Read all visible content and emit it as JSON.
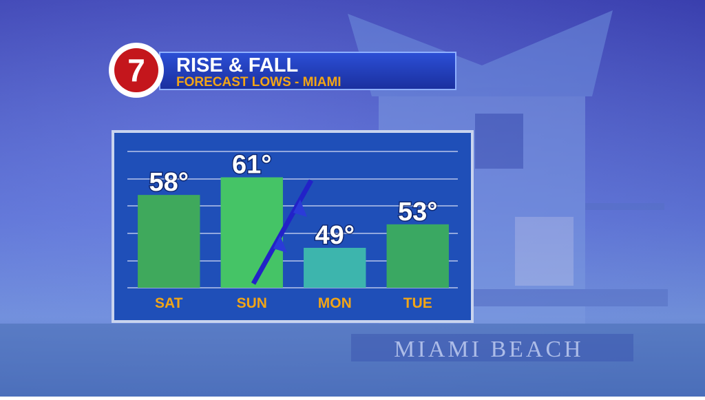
{
  "logo": "7",
  "background_sign": "MIAMI BEACH",
  "chart_data": {
    "type": "bar",
    "title": "RISE & FALL",
    "subtitle": "FORECAST LOWS - MIAMI",
    "categories": [
      "SAT",
      "SUN",
      "MON",
      "TUE"
    ],
    "values": [
      58,
      61,
      49,
      53
    ],
    "value_labels": [
      "58°",
      "61°",
      "49°",
      "53°"
    ],
    "colors": [
      "#3fa95c",
      "#45c466",
      "#3db5ad",
      "#3aa862"
    ],
    "ylim": [
      42.2,
      65.4
    ]
  }
}
